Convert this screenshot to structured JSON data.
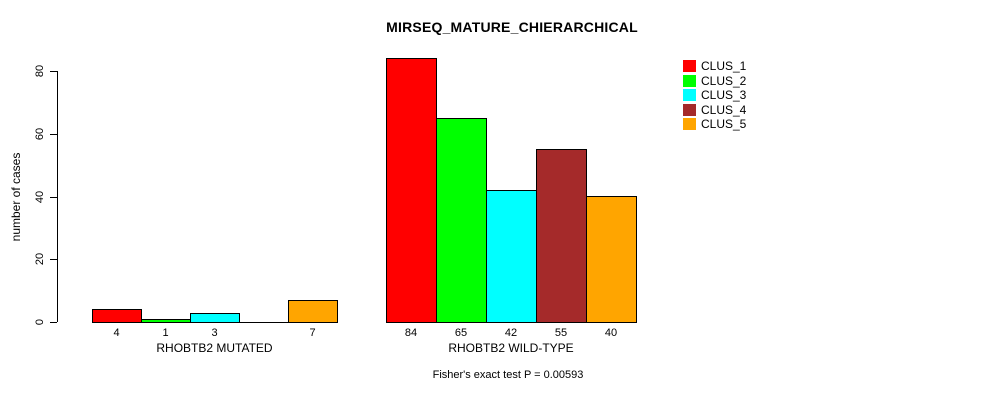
{
  "title": "MIRSEQ_MATURE_CHIERARCHICAL",
  "chart_data": {
    "type": "bar",
    "title": "MIRSEQ_MATURE_CHIERARCHICAL",
    "xlabel": "",
    "ylabel": "number of cases",
    "ylim": [
      0,
      80
    ],
    "yticks": [
      0,
      20,
      40,
      60,
      80
    ],
    "grid": false,
    "legend_position": "right",
    "categories": [
      "RHOBTB2 MUTATED",
      "RHOBTB2 WILD-TYPE"
    ],
    "series": [
      {
        "name": "CLUS_1",
        "color": "#FF0000",
        "values": [
          4,
          84
        ]
      },
      {
        "name": "CLUS_2",
        "color": "#00FF00",
        "values": [
          1,
          65
        ]
      },
      {
        "name": "CLUS_3",
        "color": "#00FFFF",
        "values": [
          3,
          42
        ]
      },
      {
        "name": "CLUS_4",
        "color": "#A52A2A",
        "values": [
          0,
          55
        ]
      },
      {
        "name": "CLUS_5",
        "color": "#FFA500",
        "values": [
          7,
          40
        ]
      }
    ],
    "bar_value_labels": {
      "RHOBTB2 MUTATED": [
        "4",
        "1",
        "3",
        "",
        "7"
      ],
      "RHOBTB2 WILD-TYPE": [
        "84",
        "65",
        "42",
        "55",
        "40"
      ]
    },
    "annotation": "Fisher's exact test P = 0.00593"
  }
}
